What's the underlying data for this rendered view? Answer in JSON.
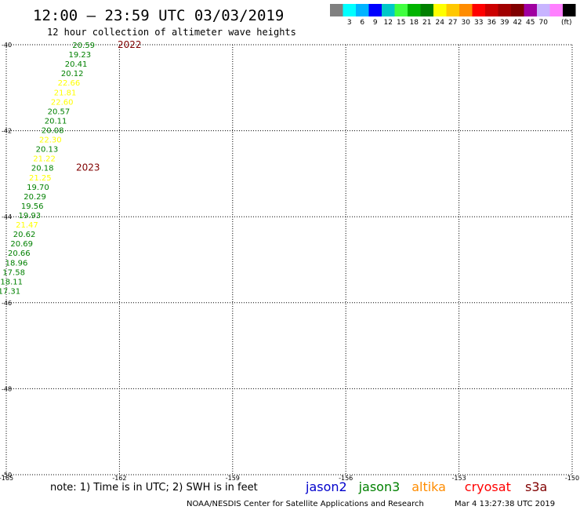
{
  "header": {
    "title": "12:00 – 23:59 UTC 03/03/2019",
    "subtitle": "12 hour collection of altimeter wave heights"
  },
  "scale": {
    "unit": "(ft)",
    "colors": [
      "#808080",
      "#00ffff",
      "#00b4ff",
      "#0000ff",
      "#00c8c8",
      "#40ff40",
      "#00b400",
      "#008000",
      "#ffff00",
      "#ffc800",
      "#ff8c00",
      "#ff0000",
      "#cc0000",
      "#a00000",
      "#800000",
      "#a000a0",
      "#c8b4ff",
      "#ff80ff",
      "#000000"
    ],
    "labels": [
      "3",
      "6",
      "9",
      "12",
      "15",
      "18",
      "21",
      "24",
      "27",
      "30",
      "33",
      "36",
      "39",
      "42",
      "45",
      "70"
    ]
  },
  "chart_data": {
    "type": "scatter",
    "x_ticks": [
      "-165",
      "-162",
      "-159",
      "-156",
      "-153",
      "-150"
    ],
    "y_ticks": [
      "-40",
      "-42",
      "-44",
      "-46",
      "-48",
      "-50"
    ],
    "xlim": [
      -165,
      -150
    ],
    "ylim": [
      -50,
      -40
    ],
    "grid": true,
    "points": [
      {
        "lon": -162.95,
        "lat": -40.0,
        "label": "20.59",
        "color": "#008000"
      },
      {
        "lon": -163.05,
        "lat": -40.22,
        "label": "19.23",
        "color": "#008000"
      },
      {
        "lon": -163.15,
        "lat": -40.44,
        "label": "20.41",
        "color": "#008000"
      },
      {
        "lon": -163.25,
        "lat": -40.66,
        "label": "20.12",
        "color": "#008000"
      },
      {
        "lon": -163.34,
        "lat": -40.88,
        "label": "22.66",
        "color": "#ffff00"
      },
      {
        "lon": -163.44,
        "lat": -41.1,
        "label": "21.81",
        "color": "#ffff00"
      },
      {
        "lon": -163.52,
        "lat": -41.32,
        "label": "22.60",
        "color": "#ffff00"
      },
      {
        "lon": -163.61,
        "lat": -41.54,
        "label": "20.57",
        "color": "#008000"
      },
      {
        "lon": -163.69,
        "lat": -41.76,
        "label": "20.11",
        "color": "#008000"
      },
      {
        "lon": -163.77,
        "lat": -41.98,
        "label": "20.08",
        "color": "#008000"
      },
      {
        "lon": -163.83,
        "lat": -42.2,
        "label": "22.30",
        "color": "#ffff00"
      },
      {
        "lon": -163.92,
        "lat": -42.42,
        "label": "20.13",
        "color": "#008000"
      },
      {
        "lon": -163.99,
        "lat": -42.64,
        "label": "21.22",
        "color": "#ffff00"
      },
      {
        "lon": -164.04,
        "lat": -42.86,
        "label": "20.18",
        "color": "#008000"
      },
      {
        "lon": -164.1,
        "lat": -43.08,
        "label": "21.25",
        "color": "#ffff00"
      },
      {
        "lon": -164.16,
        "lat": -43.3,
        "label": "19.70",
        "color": "#008000"
      },
      {
        "lon": -164.24,
        "lat": -43.52,
        "label": "20.29",
        "color": "#008000"
      },
      {
        "lon": -164.31,
        "lat": -43.74,
        "label": "19.56",
        "color": "#008000"
      },
      {
        "lon": -164.38,
        "lat": -43.96,
        "label": "19.93",
        "color": "#008000"
      },
      {
        "lon": -164.45,
        "lat": -44.18,
        "label": "21.47",
        "color": "#ffff00"
      },
      {
        "lon": -164.52,
        "lat": -44.4,
        "label": "20.62",
        "color": "#008000"
      },
      {
        "lon": -164.59,
        "lat": -44.62,
        "label": "20.69",
        "color": "#008000"
      },
      {
        "lon": -164.66,
        "lat": -44.84,
        "label": "20.66",
        "color": "#008000"
      },
      {
        "lon": -164.73,
        "lat": -45.06,
        "label": "18.96",
        "color": "#008000"
      },
      {
        "lon": -164.8,
        "lat": -45.28,
        "label": "17.58",
        "color": "#008000"
      },
      {
        "lon": -164.86,
        "lat": -45.5,
        "label": "18.11",
        "color": "#008000"
      },
      {
        "lon": -164.92,
        "lat": -45.72,
        "label": "17.31",
        "color": "#008000"
      }
    ],
    "passes": [
      {
        "lon": -162.05,
        "lat": -40.0,
        "label": "2022"
      },
      {
        "lon": -163.15,
        "lat": -42.86,
        "label": "2023"
      }
    ]
  },
  "legend": {
    "note": "note:  1) Time is in UTC;  2) SWH is in feet",
    "satellites": [
      {
        "label": "jason2",
        "color": "#0000cc"
      },
      {
        "label": "jason3",
        "color": "#008000"
      },
      {
        "label": "altika",
        "color": "#ff8c00"
      },
      {
        "label": "cryosat",
        "color": "#ff0000"
      },
      {
        "label": "s3a",
        "color": "#800000"
      }
    ]
  },
  "footer": {
    "credit": "NOAA/NESDIS Center for Satellite Applications and Research",
    "timestamp": "Mar  4 13:27:38 UTC 2019"
  }
}
